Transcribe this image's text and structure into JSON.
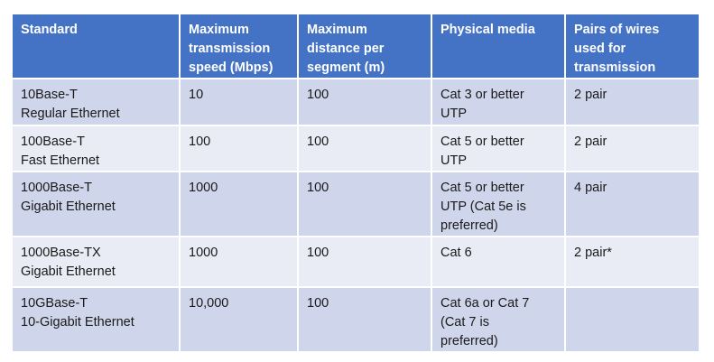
{
  "table": {
    "headers": [
      "Standard",
      "Maximum\ntransmission\nspeed (Mbps)",
      "Maximum\ndistance per\nsegment (m)",
      "Physical media",
      "Pairs of wires\nused for\ntransmission"
    ],
    "rows": [
      [
        "10Base-T\nRegular Ethernet",
        "10",
        "100",
        "Cat 3 or better\nUTP",
        "2 pair"
      ],
      [
        "100Base-T\nFast Ethernet",
        "100",
        "100",
        "Cat 5 or better\nUTP",
        "2 pair"
      ],
      [
        "1000Base-T\nGigabit Ethernet",
        "1000",
        "100",
        "Cat 5 or better\nUTP (Cat 5e is\npreferred)",
        "4 pair"
      ],
      [
        "1000Base-TX\nGigabit Ethernet",
        "1000",
        "100",
        "Cat 6",
        "2 pair*"
      ],
      [
        "10GBase-T\n10-Gigabit Ethernet",
        "10,000",
        "100",
        "Cat 6a or Cat 7\n(Cat 7 is\npreferred)",
        ""
      ]
    ]
  },
  "colors": {
    "header_bg": "#4472c4",
    "row_odd_bg": "#cfd5ea",
    "row_even_bg": "#e9ebf5"
  }
}
